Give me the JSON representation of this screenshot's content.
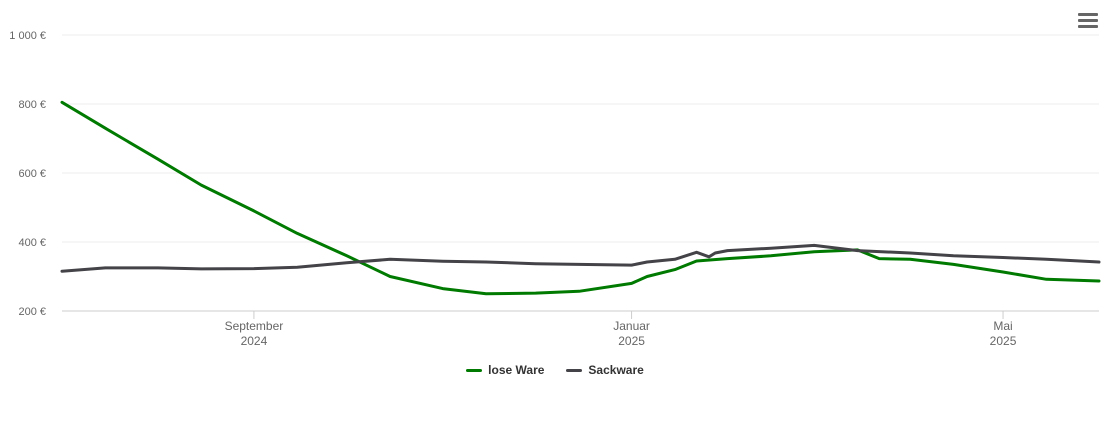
{
  "chart_data": {
    "type": "line",
    "title": "",
    "xlabel": "",
    "ylabel": "",
    "ylim": [
      200,
      1000
    ],
    "y_ticks": [
      {
        "value": 200,
        "label": "200 €"
      },
      {
        "value": 400,
        "label": "400 €"
      },
      {
        "value": 600,
        "label": "600 €"
      },
      {
        "value": 800,
        "label": "800 €"
      },
      {
        "value": 1000,
        "label": "1 000 €"
      }
    ],
    "xlim": [
      "2024-07-01",
      "2025-06-01"
    ],
    "x_ticks": [
      {
        "date": "2024-09-01",
        "label_month": "September",
        "label_year": "2024"
      },
      {
        "date": "2025-01-01",
        "label_month": "Januar",
        "label_year": "2025"
      },
      {
        "date": "2025-05-01",
        "label_month": "Mai",
        "label_year": "2025"
      }
    ],
    "grid": true,
    "legend_position": "bottom-center",
    "series": [
      {
        "name": "lose Ware",
        "color": "#007a00",
        "points": [
          [
            "2024-07-01",
            805
          ],
          [
            "2024-07-15",
            730
          ],
          [
            "2024-08-01",
            640
          ],
          [
            "2024-08-15",
            565
          ],
          [
            "2024-09-01",
            490
          ],
          [
            "2024-09-15",
            425
          ],
          [
            "2024-10-01",
            360
          ],
          [
            "2024-10-15",
            300
          ],
          [
            "2024-11-01",
            265
          ],
          [
            "2024-11-15",
            250
          ],
          [
            "2024-12-01",
            252
          ],
          [
            "2024-12-15",
            257
          ],
          [
            "2025-01-01",
            280
          ],
          [
            "2025-01-06",
            300
          ],
          [
            "2025-01-15",
            320
          ],
          [
            "2025-01-22",
            345
          ],
          [
            "2025-02-01",
            352
          ],
          [
            "2025-02-15",
            360
          ],
          [
            "2025-03-01",
            372
          ],
          [
            "2025-03-15",
            377
          ],
          [
            "2025-03-22",
            352
          ],
          [
            "2025-04-01",
            350
          ],
          [
            "2025-04-15",
            335
          ],
          [
            "2025-05-01",
            313
          ],
          [
            "2025-05-15",
            292
          ],
          [
            "2025-06-01",
            287
          ]
        ]
      },
      {
        "name": "Sackware",
        "color": "#434348",
        "points": [
          [
            "2024-07-01",
            315
          ],
          [
            "2024-07-15",
            325
          ],
          [
            "2024-08-01",
            325
          ],
          [
            "2024-08-15",
            322
          ],
          [
            "2024-09-01",
            323
          ],
          [
            "2024-09-15",
            327
          ],
          [
            "2024-10-01",
            340
          ],
          [
            "2024-10-15",
            350
          ],
          [
            "2024-11-01",
            344
          ],
          [
            "2024-11-15",
            342
          ],
          [
            "2024-12-01",
            337
          ],
          [
            "2024-12-15",
            335
          ],
          [
            "2025-01-01",
            333
          ],
          [
            "2025-01-06",
            342
          ],
          [
            "2025-01-15",
            350
          ],
          [
            "2025-01-22",
            370
          ],
          [
            "2025-01-26",
            357
          ],
          [
            "2025-01-28",
            368
          ],
          [
            "2025-02-01",
            375
          ],
          [
            "2025-02-15",
            382
          ],
          [
            "2025-03-01",
            390
          ],
          [
            "2025-03-15",
            375
          ],
          [
            "2025-04-01",
            368
          ],
          [
            "2025-04-15",
            360
          ],
          [
            "2025-05-01",
            355
          ],
          [
            "2025-05-15",
            350
          ],
          [
            "2025-06-01",
            342
          ]
        ]
      }
    ]
  },
  "menu": {
    "icon": "hamburger-menu-icon"
  }
}
